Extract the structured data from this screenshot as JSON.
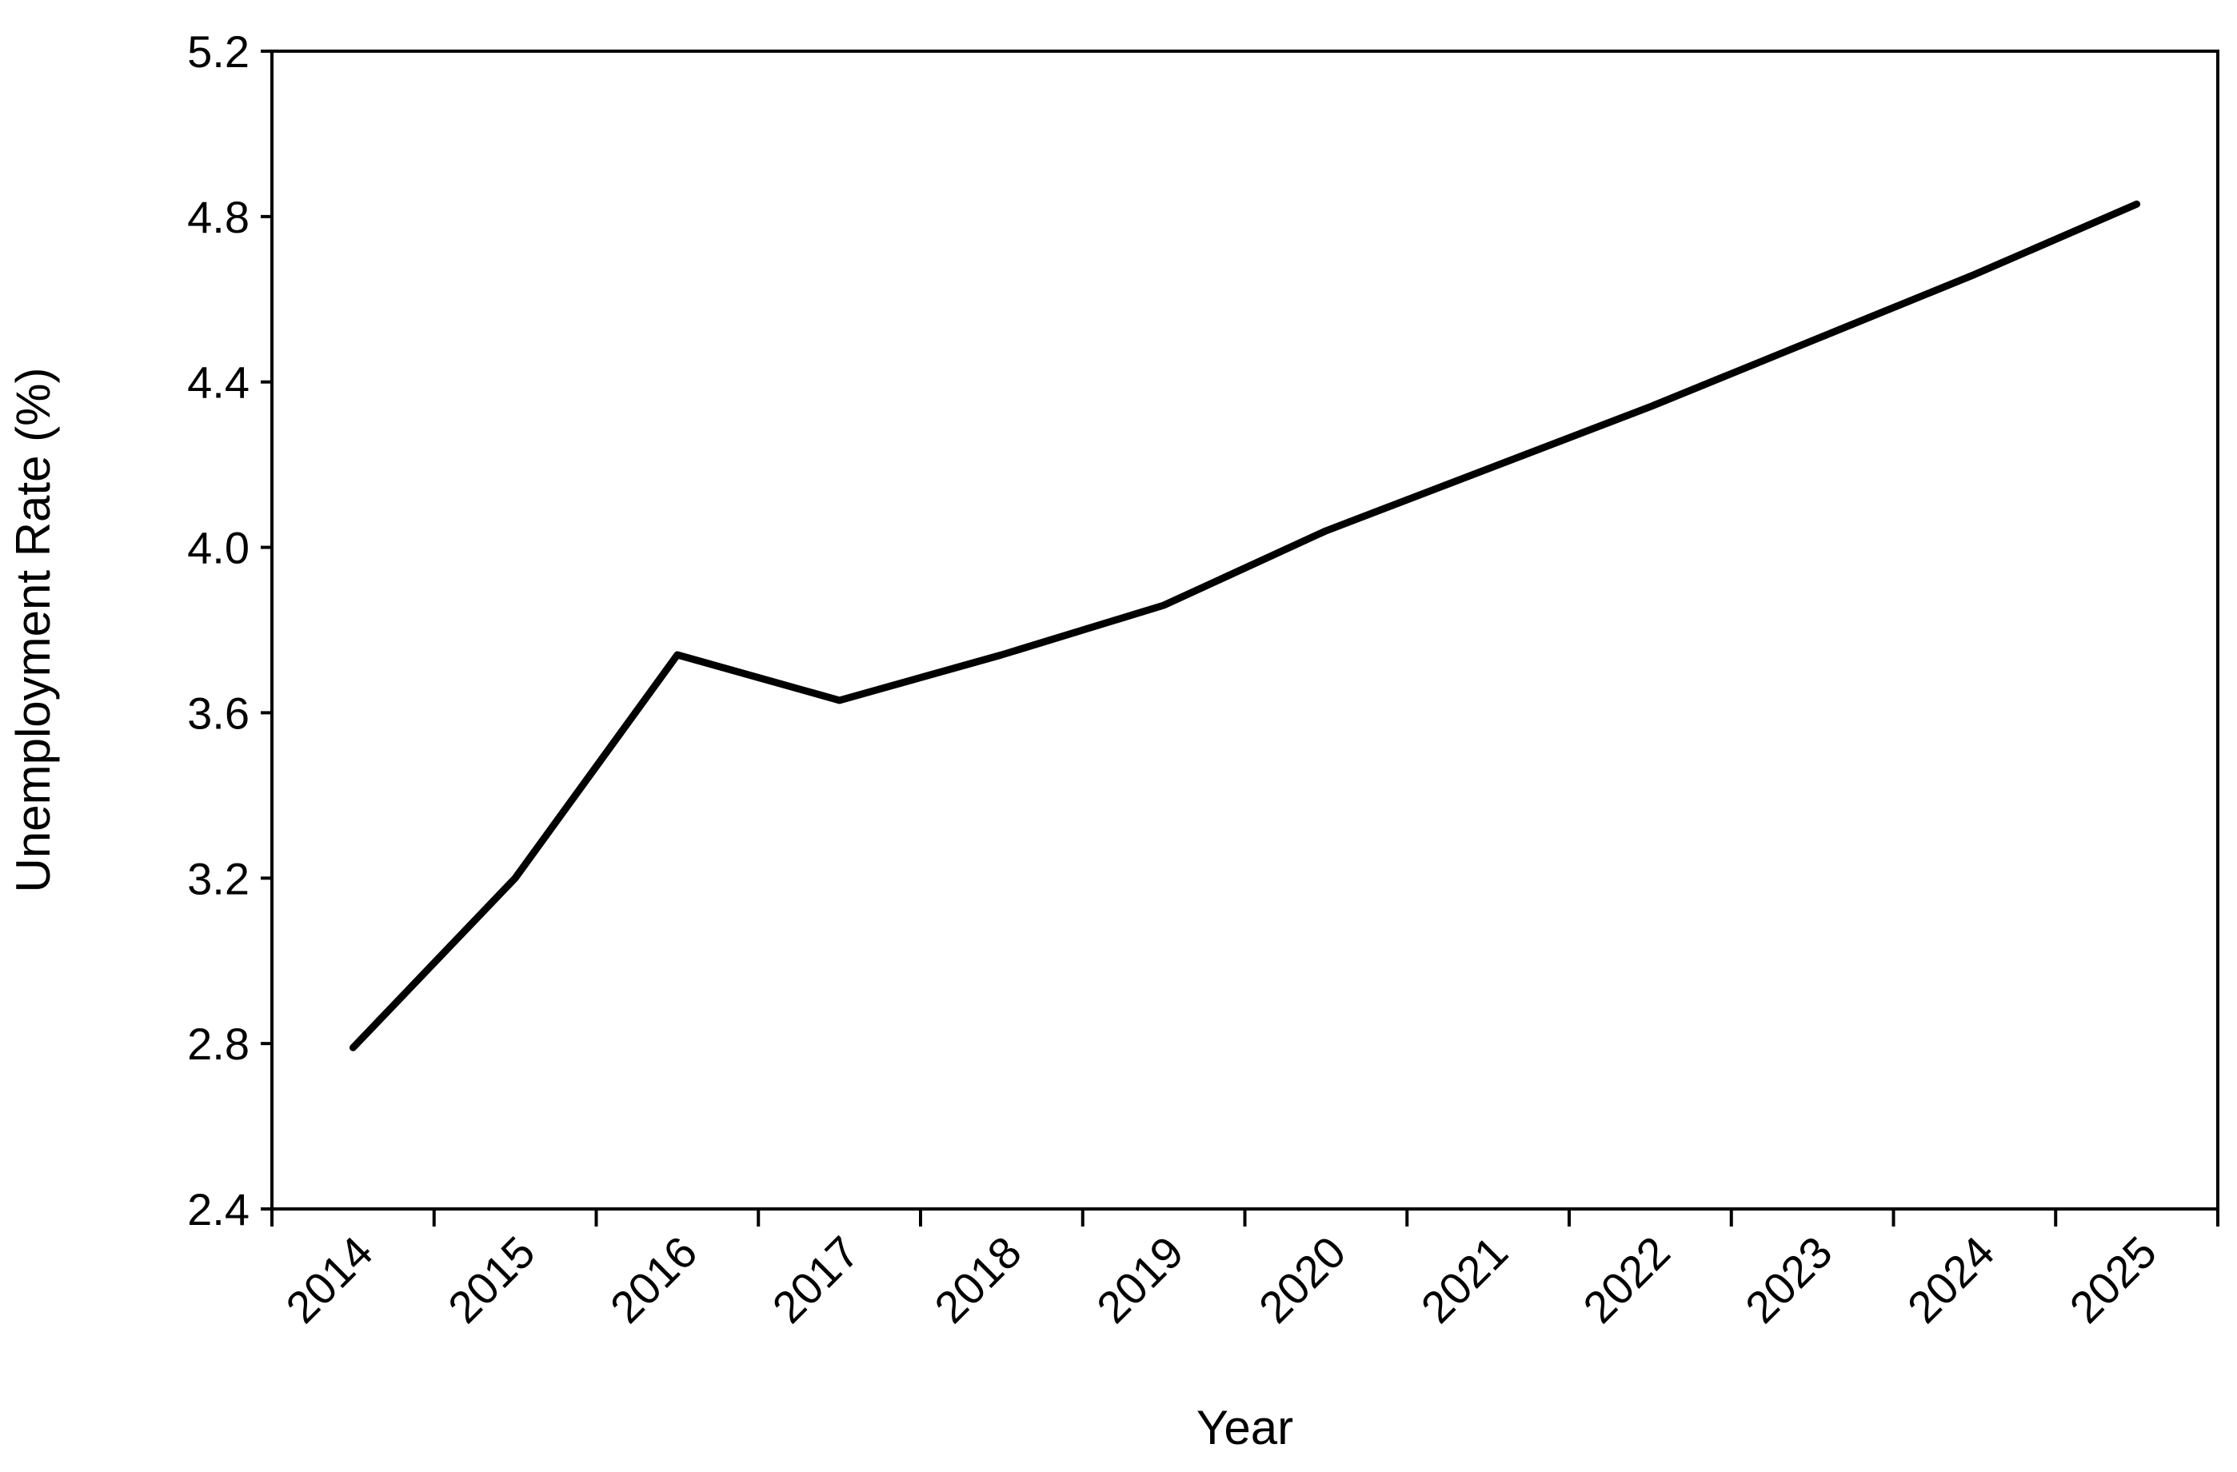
{
  "chart_data": {
    "type": "line",
    "title": "",
    "xlabel": "Year",
    "ylabel": "Unemployment Rate (%)",
    "ylim": [
      2.4,
      5.2
    ],
    "yticks": [
      "2.4",
      "2.8",
      "3.2",
      "3.6",
      "4.0",
      "4.4",
      "4.8",
      "5.2"
    ],
    "categories": [
      "2014",
      "2015",
      "2016",
      "2017",
      "2018",
      "2019",
      "2020",
      "2021",
      "2022",
      "2023",
      "2024",
      "2025"
    ],
    "grid": false,
    "legend": "none",
    "line_color": "#000000",
    "series": [
      {
        "values": [
          2.79,
          3.2,
          3.74,
          3.63,
          3.74,
          3.86,
          4.04,
          4.19,
          4.34,
          4.5,
          4.66,
          4.83
        ]
      }
    ]
  }
}
